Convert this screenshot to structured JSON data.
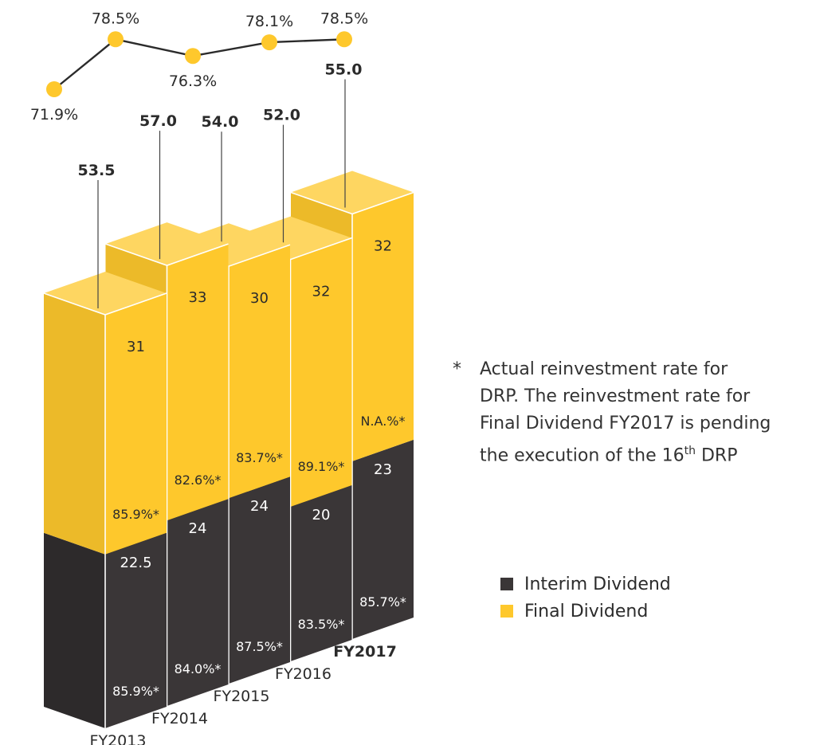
{
  "chart_data": {
    "type": "bar",
    "stacked": true,
    "categories": [
      "FY2013",
      "FY2014",
      "FY2015",
      "FY2016",
      "FY2017"
    ],
    "series": [
      {
        "name": "Interim Dividend",
        "values": [
          22.5,
          24,
          24,
          20,
          23
        ],
        "rates": [
          "85.9%*",
          "84.0%*",
          "87.5%*",
          "83.5%*",
          "85.7%*"
        ],
        "color": "#3a3637"
      },
      {
        "name": "Final Dividend",
        "values": [
          31,
          33,
          30,
          32,
          32
        ],
        "rates": [
          "85.9%*",
          "82.6%*",
          "83.7%*",
          "89.1%*",
          "N.A.%*"
        ],
        "color": "#fec82c"
      }
    ],
    "totals": [
      "53.5",
      "57.0",
      "54.0",
      "52.0",
      "55.0"
    ],
    "line": {
      "values": [
        71.9,
        78.5,
        76.3,
        78.1,
        78.5
      ],
      "labels": [
        "71.9%",
        "78.5%",
        "76.3%",
        "78.1%",
        "78.5%"
      ],
      "color": "#fec82c"
    }
  },
  "footnote": {
    "star": "*",
    "lines": [
      "Actual reinvestment rate for",
      "DRP. The reinvestment rate for",
      "Final Dividend FY2017 is pending",
      "the execution of the 16"
    ],
    "superscript": "th",
    "tail": " DRP"
  },
  "legend": {
    "items": [
      {
        "label": "Interim Dividend",
        "color": "#3a3637"
      },
      {
        "label": "Final Dividend",
        "color": "#fec82c"
      }
    ]
  }
}
